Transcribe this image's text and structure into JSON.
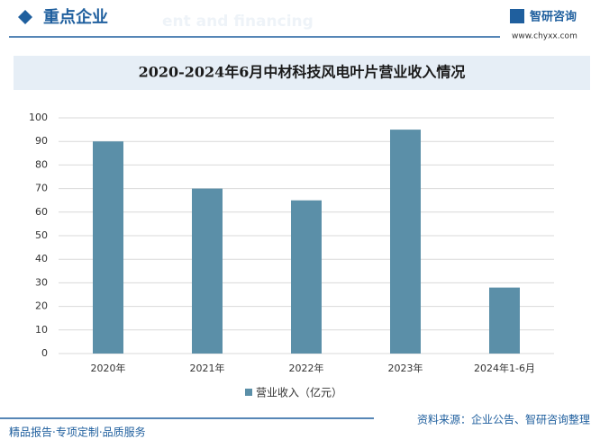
{
  "header": {
    "title": "重点企业",
    "background_text": "ent and financing",
    "logo": "智研咨询",
    "url": "www.chyxx.com"
  },
  "chart_data": {
    "type": "bar",
    "title": "2020-2024年6月中材科技风电叶片营业收入情况",
    "categories": [
      "2020年",
      "2021年",
      "2022年",
      "2023年",
      "2024年1-6月"
    ],
    "series": [
      {
        "name": "营业收入（亿元）",
        "color": "#5b8fa8",
        "values": [
          90,
          70,
          65,
          95,
          28
        ]
      }
    ],
    "ylim": [
      0,
      100
    ],
    "yticks": [
      0,
      10,
      20,
      30,
      40,
      50,
      60,
      70,
      80,
      90,
      100
    ],
    "grid": true,
    "legend": "bottom"
  },
  "footer": {
    "left": "精品报告·专项定制·品质服务",
    "source": "资料来源：企业公告、智研咨询整理"
  }
}
